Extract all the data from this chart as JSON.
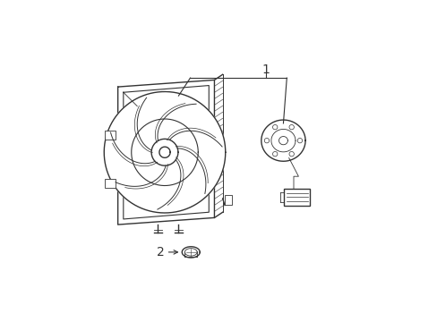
{
  "background_color": "#ffffff",
  "line_color": "#333333",
  "lw": 1.0,
  "tlw": 0.6,
  "label_1": "1",
  "label_2": "2"
}
